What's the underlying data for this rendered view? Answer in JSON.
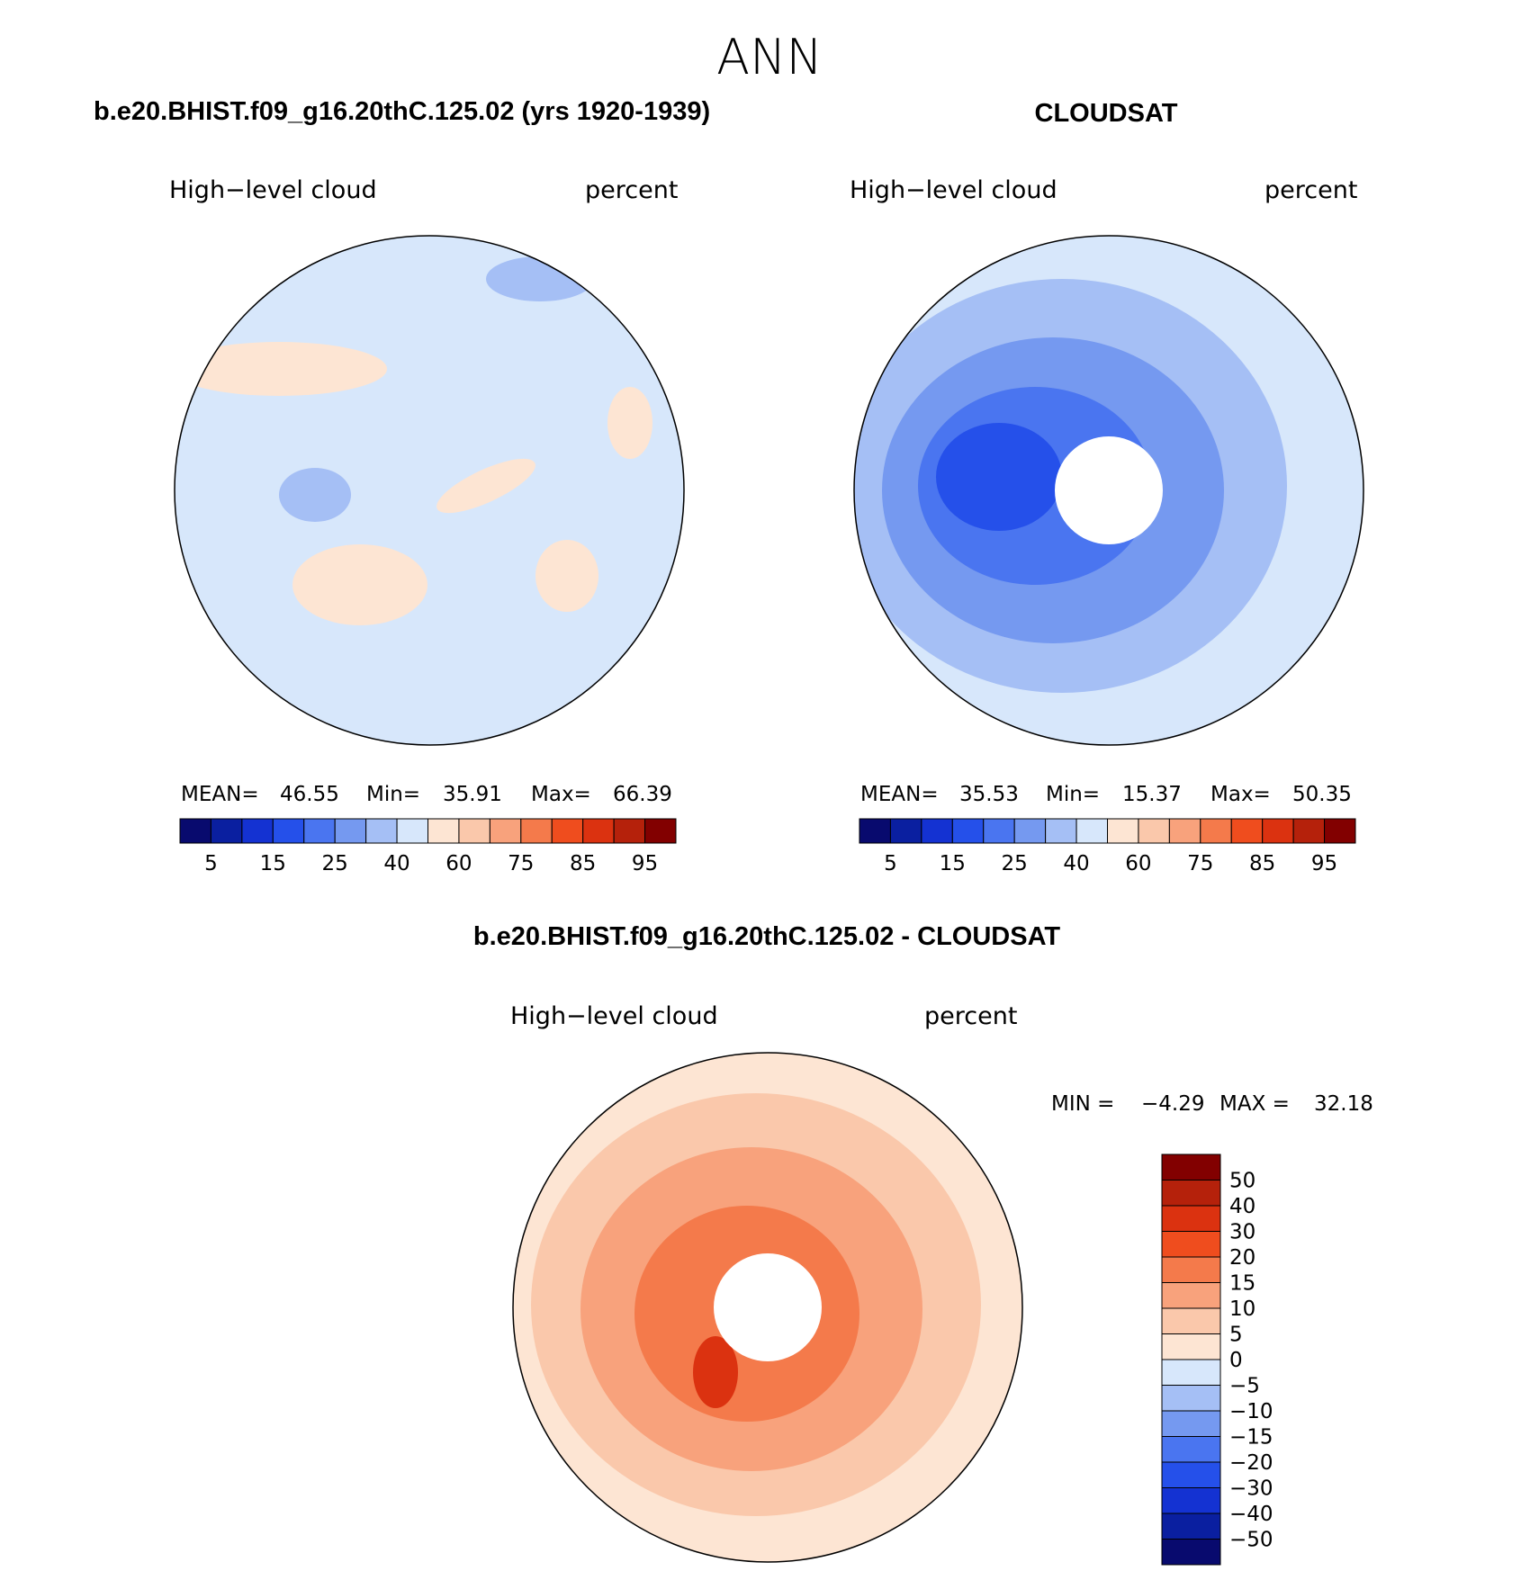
{
  "title": "ANN",
  "panels": [
    {
      "heading": "b.e20.BHIST.f09_g16.20thC.125.02 (yrs 1920-1939)",
      "variable": "High−level cloud",
      "units": "percent",
      "stats": [
        "MEAN=",
        "46.55",
        "Min=",
        "35.91",
        "Max=",
        "66.39"
      ],
      "colorbar": {
        "labels": [
          "5",
          "15",
          "25",
          "40",
          "60",
          "75",
          "85",
          "95"
        ]
      }
    },
    {
      "heading": "CLOUDSAT",
      "variable": "High−level cloud",
      "units": "percent",
      "stats": [
        "MEAN=",
        "35.53",
        "Min=",
        "15.37",
        "Max=",
        "50.35"
      ],
      "colorbar": {
        "labels": [
          "5",
          "15",
          "25",
          "40",
          "60",
          "75",
          "85",
          "95"
        ]
      }
    }
  ],
  "difference": {
    "heading": "b.e20.BHIST.f09_g16.20thC.125.02 - CLOUDSAT",
    "variable": "High−level cloud",
    "units": "percent",
    "stats": [
      "MIN =",
      "−4.29",
      "MAX =",
      "32.18"
    ],
    "colorbar": {
      "labels": [
        "50",
        "40",
        "30",
        "20",
        "15",
        "10",
        "5",
        "0",
        "−5",
        "−10",
        "−15",
        "−20",
        "−30",
        "−40",
        "−50"
      ]
    }
  },
  "colors": [
    "#080a6e",
    "#0a1fa0",
    "#1432d2",
    "#2550ea",
    "#4a75f0",
    "#7599f0",
    "#a5bff5",
    "#d7e7fb",
    "#fde5d3",
    "#fac8ab",
    "#f8a27c",
    "#f47a4b",
    "#ef4d1e",
    "#db3210",
    "#b5210b",
    "#820000"
  ]
}
